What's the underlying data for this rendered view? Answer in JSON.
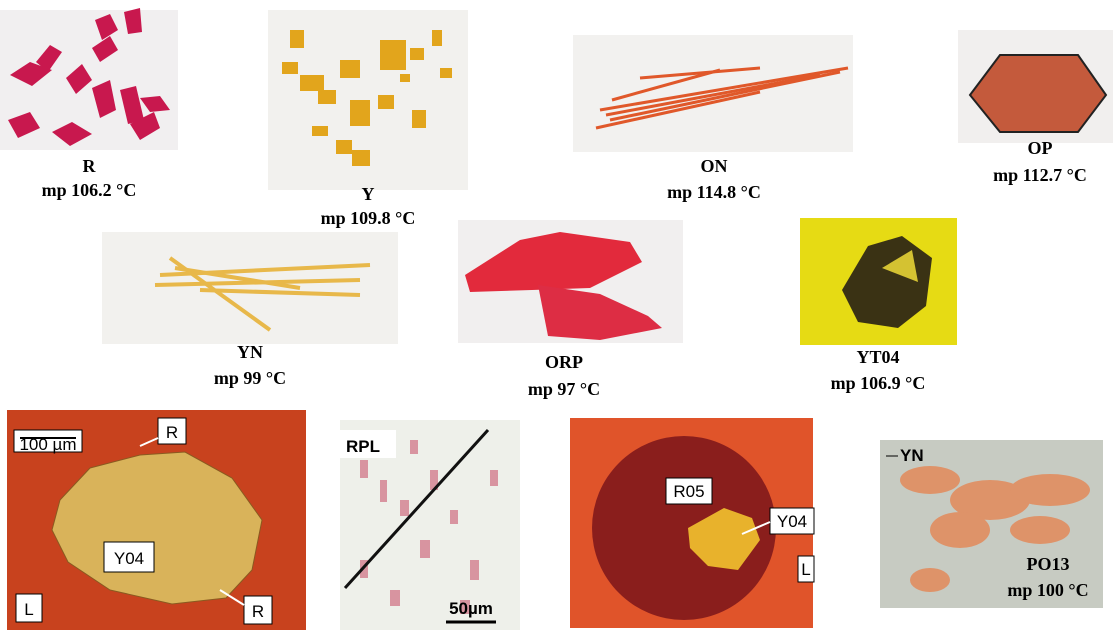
{
  "panels": [
    {
      "label": "R",
      "melting_point": "mp 106.2 °C"
    },
    {
      "label": "Y",
      "melting_point": "mp 109.8 °C"
    },
    {
      "label": "ON",
      "melting_point": "mp 114.8 °C"
    },
    {
      "label": "OP",
      "melting_point": "mp 112.7 °C"
    },
    {
      "label": "YN",
      "melting_point": "mp 99 °C"
    },
    {
      "label": "ORP",
      "melting_point": "mp 97 °C"
    },
    {
      "label": "YT04",
      "melting_point": "mp 106.9 °C"
    }
  ],
  "micrographs": [
    {
      "scale_bar": "100 µm",
      "labels": [
        "R",
        "Y04",
        "R",
        "L"
      ]
    },
    {
      "scale_bar": "50µm",
      "labels": [
        "RPL"
      ]
    },
    {
      "labels": [
        "R05",
        "Y04",
        "L"
      ]
    },
    {
      "labels": [
        "YN",
        "PO13",
        "mp 100 °C"
      ]
    }
  ]
}
